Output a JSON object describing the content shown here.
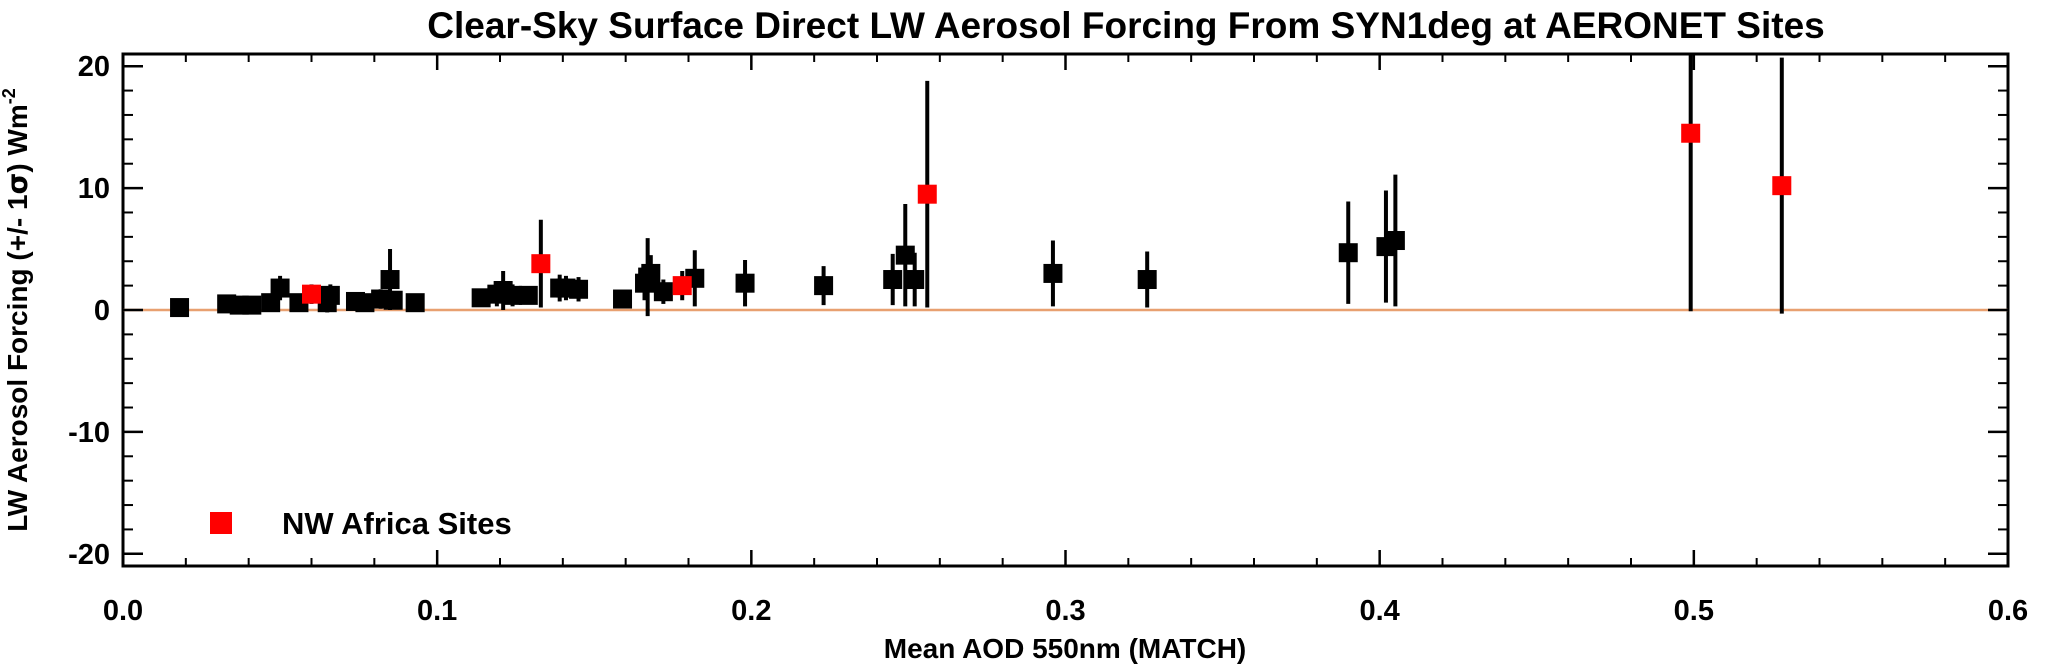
{
  "chart_data": {
    "type": "scatter",
    "title": "Clear-Sky Surface Direct LW Aerosol Forcing From SYN1deg at AERONET Sites",
    "xlabel": "Mean AOD 550nm (MATCH)",
    "ylabel_prefix": "LW Aerosol Forcing (+/- 1",
    "ylabel_sigma": "σ",
    "ylabel_suffix": ") Wm",
    "ylabel_exponent": "-2",
    "xlim": [
      0.0,
      0.6
    ],
    "ylim": [
      -21,
      21
    ],
    "x_ticks": [
      "0.0",
      "0.1",
      "0.2",
      "0.3",
      "0.4",
      "0.5",
      "0.6"
    ],
    "y_ticks": [
      "-20",
      "-10",
      "0",
      "10",
      "20"
    ],
    "x_tick_values": [
      0.0,
      0.1,
      0.2,
      0.3,
      0.4,
      0.5,
      0.6
    ],
    "y_tick_values": [
      -20,
      -10,
      0,
      10,
      20
    ],
    "reference_line": {
      "y": 0,
      "color": "#e8a070"
    },
    "legend": {
      "label": "NW Africa Sites",
      "position": "bottom-left",
      "color": "#ff0000"
    },
    "series": [
      {
        "name": "",
        "color": "#000000",
        "points": [
          {
            "x": 0.018,
            "y": 0.2,
            "err": 0.4
          },
          {
            "x": 0.033,
            "y": 0.5,
            "err": 0.3
          },
          {
            "x": 0.037,
            "y": 0.4,
            "err": 0.3
          },
          {
            "x": 0.041,
            "y": 0.4,
            "err": 0.3
          },
          {
            "x": 0.047,
            "y": 0.6,
            "err": 0.5
          },
          {
            "x": 0.05,
            "y": 1.8,
            "err": 1.0
          },
          {
            "x": 0.056,
            "y": 0.6,
            "err": 0.6
          },
          {
            "x": 0.065,
            "y": 0.6,
            "err": 0.8
          },
          {
            "x": 0.066,
            "y": 1.2,
            "err": 0.9
          },
          {
            "x": 0.074,
            "y": 0.7,
            "err": 0.6
          },
          {
            "x": 0.077,
            "y": 0.6,
            "err": 0.5
          },
          {
            "x": 0.082,
            "y": 0.9,
            "err": 0.8
          },
          {
            "x": 0.085,
            "y": 2.5,
            "err": 2.5
          },
          {
            "x": 0.086,
            "y": 0.8,
            "err": 0.5
          },
          {
            "x": 0.093,
            "y": 0.6,
            "err": 0.4
          },
          {
            "x": 0.114,
            "y": 1.0,
            "err": 0.6
          },
          {
            "x": 0.119,
            "y": 1.3,
            "err": 1.0
          },
          {
            "x": 0.121,
            "y": 1.6,
            "err": 1.6
          },
          {
            "x": 0.124,
            "y": 1.2,
            "err": 0.9
          },
          {
            "x": 0.129,
            "y": 1.2,
            "err": 0.6
          },
          {
            "x": 0.139,
            "y": 1.8,
            "err": 1.1
          },
          {
            "x": 0.141,
            "y": 1.8,
            "err": 1.0
          },
          {
            "x": 0.145,
            "y": 1.7,
            "err": 1.0
          },
          {
            "x": 0.159,
            "y": 0.9,
            "err": 0.6
          },
          {
            "x": 0.166,
            "y": 2.2,
            "err": 1.4
          },
          {
            "x": 0.167,
            "y": 2.7,
            "err": 3.2
          },
          {
            "x": 0.168,
            "y": 3.0,
            "err": 1.5
          },
          {
            "x": 0.172,
            "y": 1.5,
            "err": 1.0
          },
          {
            "x": 0.182,
            "y": 2.6,
            "err": 2.3
          },
          {
            "x": 0.198,
            "y": 2.2,
            "err": 1.9
          },
          {
            "x": 0.223,
            "y": 2.0,
            "err": 1.6
          },
          {
            "x": 0.245,
            "y": 2.5,
            "err": 2.1
          },
          {
            "x": 0.249,
            "y": 4.5,
            "err": 4.2
          },
          {
            "x": 0.252,
            "y": 2.5,
            "err": 2.2
          },
          {
            "x": 0.296,
            "y": 3.0,
            "err": 2.7
          },
          {
            "x": 0.326,
            "y": 2.5,
            "err": 2.3
          },
          {
            "x": 0.39,
            "y": 4.7,
            "err": 4.2
          },
          {
            "x": 0.402,
            "y": 5.2,
            "err": 4.6
          },
          {
            "x": 0.405,
            "y": 5.7,
            "err": 5.4
          }
        ]
      },
      {
        "name": "NW Africa Sites",
        "color": "#ff0000",
        "points": [
          {
            "x": 0.06,
            "y": 1.3,
            "err": 0.8
          },
          {
            "x": 0.133,
            "y": 3.8,
            "err": 3.6
          },
          {
            "x": 0.178,
            "y": 2.0,
            "err": 1.2
          },
          {
            "x": 0.256,
            "y": 9.5,
            "err": 9.3
          },
          {
            "x": 0.499,
            "y": 14.5,
            "err": 14.6
          },
          {
            "x": 0.528,
            "y": 10.2,
            "err": 10.5
          }
        ]
      }
    ]
  }
}
